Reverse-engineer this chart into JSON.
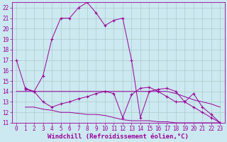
{
  "x_values": [
    0,
    1,
    2,
    3,
    4,
    5,
    6,
    7,
    8,
    9,
    10,
    11,
    12,
    13,
    14,
    15,
    16,
    17,
    18,
    19,
    20,
    21,
    22,
    23
  ],
  "line1_x": [
    0,
    1,
    2,
    3,
    4,
    5,
    6,
    7,
    8,
    9,
    10,
    11,
    12,
    13,
    14,
    15,
    16,
    17,
    18,
    19,
    20,
    21,
    22,
    23
  ],
  "line1_y": [
    17.0,
    14.3,
    14.0,
    15.5,
    19.0,
    21.0,
    21.0,
    22.0,
    22.5,
    21.5,
    20.3,
    20.8,
    21.0,
    17.0,
    11.5,
    14.0,
    14.2,
    14.3,
    14.0,
    13.0,
    13.8,
    12.5,
    11.8,
    11.0
  ],
  "line2_x": [
    1,
    2,
    3,
    4,
    5,
    6,
    7,
    8,
    9,
    10,
    11,
    12,
    13,
    14,
    15,
    16,
    17,
    18,
    19,
    20,
    21,
    22,
    23
  ],
  "line2_y": [
    14.2,
    14.0,
    13.0,
    12.5,
    12.8,
    13.0,
    13.3,
    13.5,
    13.8,
    14.0,
    13.8,
    11.5,
    13.7,
    14.3,
    14.4,
    14.0,
    13.5,
    13.0,
    13.0,
    12.5,
    12.0,
    11.5,
    11.0
  ],
  "line3_x": [
    0,
    1,
    2,
    3,
    4,
    5,
    6,
    7,
    8,
    9,
    10,
    11,
    12,
    13,
    14,
    15,
    16,
    17,
    18,
    19,
    20,
    21,
    22,
    23
  ],
  "line3_y": [
    14.0,
    14.0,
    14.0,
    14.0,
    14.0,
    14.0,
    14.0,
    14.0,
    14.0,
    14.0,
    14.0,
    14.0,
    14.0,
    14.0,
    14.0,
    14.0,
    14.0,
    14.0,
    13.8,
    13.5,
    13.2,
    13.0,
    12.8,
    12.5
  ],
  "line4_x": [
    1,
    2,
    3,
    4,
    5,
    6,
    7,
    8,
    9,
    10,
    11,
    12,
    13,
    14,
    15,
    16,
    17,
    18,
    19,
    20,
    21,
    22,
    23
  ],
  "line4_y": [
    12.5,
    12.5,
    12.3,
    12.2,
    12.0,
    12.0,
    11.9,
    11.8,
    11.8,
    11.7,
    11.5,
    11.3,
    11.2,
    11.2,
    11.2,
    11.1,
    11.1,
    11.0,
    11.0,
    11.0,
    11.0,
    11.0,
    11.0
  ],
  "color": "#990099",
  "bg_color": "#cce8f0",
  "grid_color": "#aacccc",
  "xlim": [
    -0.5,
    23.5
  ],
  "ylim": [
    11,
    22.5
  ],
  "yticks": [
    11,
    12,
    13,
    14,
    15,
    16,
    17,
    18,
    19,
    20,
    21,
    22
  ],
  "xticks": [
    0,
    1,
    2,
    3,
    4,
    5,
    6,
    7,
    8,
    9,
    10,
    11,
    12,
    13,
    14,
    15,
    16,
    17,
    18,
    19,
    20,
    21,
    22,
    23
  ],
  "xlabel": "Windchill (Refroidissement éolien,°C)",
  "axis_fontsize": 5.5,
  "label_fontsize": 6.5
}
